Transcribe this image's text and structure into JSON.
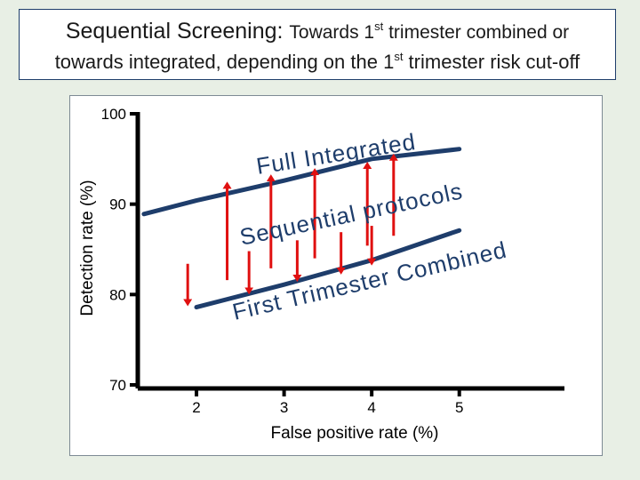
{
  "title": {
    "line1_prefix": "Sequential Screening: ",
    "line1_rest": "Towards 1",
    "line1_sup": "st",
    "line1_end": " trimester combined or",
    "line2_start": "towards integrated, depending on the 1",
    "line2_sup": "st",
    "line2_end": " trimester risk cut-off"
  },
  "colors": {
    "series": "#1e3d6b",
    "arrow": "#e01010",
    "axis": "#000000",
    "background": "#e8efe5"
  },
  "chart_data": {
    "type": "line",
    "xlabel": "False positive rate (%)",
    "ylabel": "Detection rate (%)",
    "xlim": [
      1.33,
      6.2
    ],
    "ylim": [
      70,
      100
    ],
    "x_ticks": [
      2,
      3,
      4,
      5
    ],
    "x_tick_labels": [
      "2",
      "3",
      "4",
      "5"
    ],
    "y_ticks": [
      70,
      80,
      90,
      100
    ],
    "y_tick_labels": [
      "70",
      "80",
      "90",
      "100"
    ],
    "series": [
      {
        "name": "Full Integrated",
        "x": [
          1.4,
          2.0,
          3.0,
          4.0,
          5.0
        ],
        "y": [
          88.9,
          90.4,
          92.6,
          95.0,
          96.1
        ]
      },
      {
        "name": "First Trimester Combined",
        "x": [
          2.0,
          3.0,
          4.0,
          5.0
        ],
        "y": [
          78.6,
          81.1,
          83.8,
          87.1
        ]
      }
    ],
    "annotations": [
      {
        "text": "Sequential protocols"
      }
    ],
    "arrows": [
      {
        "x": 2.35,
        "from": 81.6,
        "to": 92.1,
        "direction": "up"
      },
      {
        "x": 2.85,
        "from": 82.9,
        "to": 92.9,
        "direction": "up"
      },
      {
        "x": 3.35,
        "from": 84.0,
        "to": 93.6,
        "direction": "up"
      },
      {
        "x": 3.95,
        "from": 85.4,
        "to": 94.3,
        "direction": "up"
      },
      {
        "x": 4.25,
        "from": 86.5,
        "to": 95.2,
        "direction": "up"
      },
      {
        "x": 1.9,
        "from": 83.4,
        "to": 79.1,
        "direction": "down"
      },
      {
        "x": 2.6,
        "from": 84.8,
        "to": 80.4,
        "direction": "down"
      },
      {
        "x": 3.15,
        "from": 86.0,
        "to": 81.8,
        "direction": "down"
      },
      {
        "x": 3.65,
        "from": 86.9,
        "to": 82.6,
        "direction": "down"
      },
      {
        "x": 4.0,
        "from": 87.6,
        "to": 83.6,
        "direction": "down"
      }
    ]
  }
}
